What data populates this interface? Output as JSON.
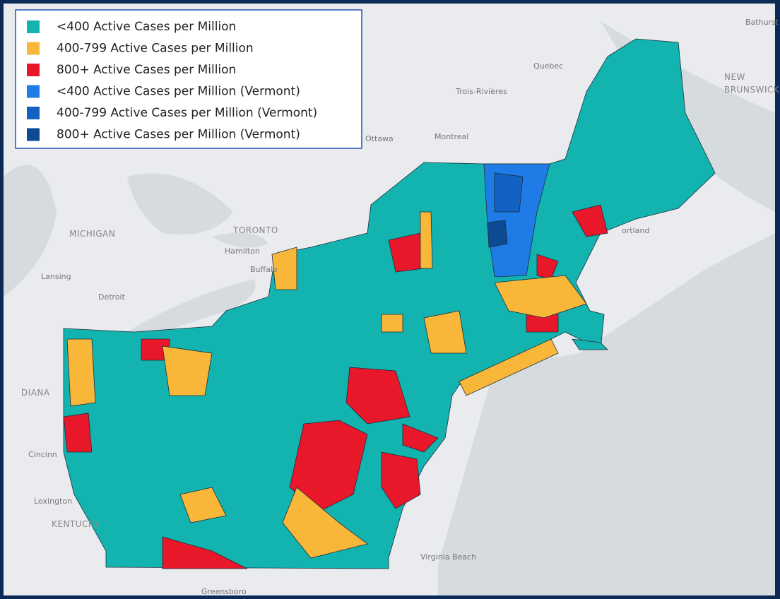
{
  "legend": {
    "items": [
      {
        "label": "<400 Active Cases per Million",
        "color": "#13b4b0"
      },
      {
        "label": "400-799 Active Cases per Million",
        "color": "#f9b73a"
      },
      {
        "label": "800+ Active Cases per Million",
        "color": "#e8172a"
      },
      {
        "label": "<400 Active Cases per Million (Vermont)",
        "color": "#1f7ce6"
      },
      {
        "label": "400-799 Active Cases per Million (Vermont)",
        "color": "#1461c4"
      },
      {
        "label": "800+ Active Cases per Million (Vermont)",
        "color": "#0d4a94"
      }
    ]
  },
  "places": [
    "Bathurst",
    "Quebec",
    "NEW",
    "BRUNSWICK",
    "Trois-Rivières",
    "Montreal",
    "Ottawa",
    "MICHIGAN",
    "TORONTO",
    "Hamilton",
    "Buffalo",
    "Lansing",
    "Detroit",
    "ortland",
    "DIANA",
    "KENTUCKY",
    "Lexington",
    "Virginia Beach",
    "Greensboro",
    "Cincinn"
  ]
}
